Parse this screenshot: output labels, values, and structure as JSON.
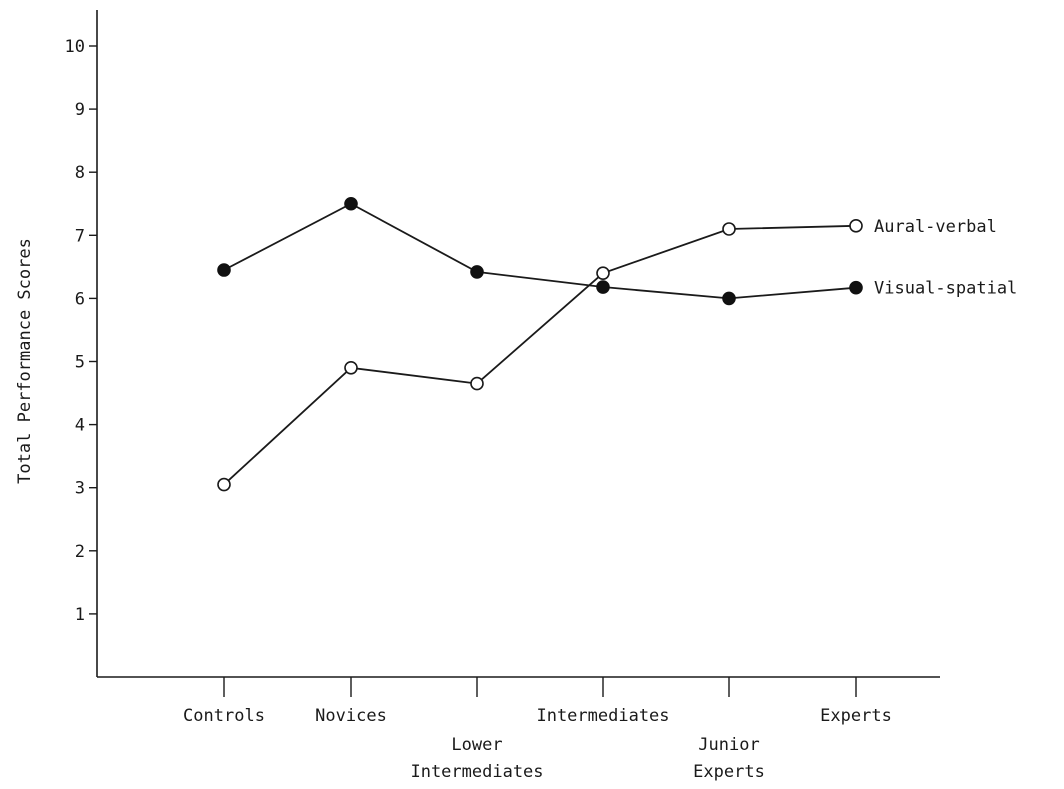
{
  "chart_data": {
    "type": "line",
    "ylabel": "Total Performance Scores",
    "xlabel": "",
    "ylim": [
      0,
      10
    ],
    "yticks": [
      1,
      2,
      3,
      4,
      5,
      6,
      7,
      8,
      9,
      10
    ],
    "categories": [
      {
        "label": [
          "Controls"
        ]
      },
      {
        "label": [
          "Novices"
        ]
      },
      {
        "label": [
          "Lower",
          "Intermediates"
        ]
      },
      {
        "label": [
          "Intermediates"
        ]
      },
      {
        "label": [
          "Junior",
          "Experts"
        ]
      },
      {
        "label": [
          "Experts"
        ]
      }
    ],
    "series": [
      {
        "name": "Aural-verbal",
        "marker": "open",
        "values": [
          3.05,
          4.9,
          4.65,
          6.4,
          7.1,
          7.15
        ]
      },
      {
        "name": "Visual-spatial",
        "marker": "filled",
        "values": [
          6.45,
          7.5,
          6.42,
          6.18,
          6.0,
          6.17
        ]
      }
    ],
    "grid": false,
    "legend": "inline-right"
  }
}
